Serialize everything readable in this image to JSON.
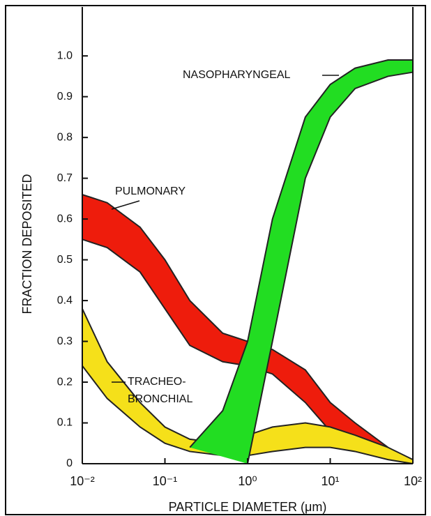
{
  "chart_data": {
    "type": "band",
    "y_label": "FRACTION DEPOSITED",
    "x_label": "PARTICLE DIAMETER (μm)",
    "x_scale": "log",
    "x": [
      0.01,
      0.02,
      0.05,
      0.1,
      0.2,
      0.5,
      1,
      2,
      5,
      10,
      20,
      50,
      100
    ],
    "xlim": [
      0.01,
      100
    ],
    "xticks": [
      {
        "value": 0.01,
        "label": "10⁻²"
      },
      {
        "value": 0.1,
        "label": "10⁻¹"
      },
      {
        "value": 1,
        "label": "10⁰"
      },
      {
        "value": 10,
        "label": "10¹"
      },
      {
        "value": 100,
        "label": "10²"
      }
    ],
    "ylim": [
      0,
      1.12
    ],
    "yticks": [
      0,
      0.1,
      0.2,
      0.3,
      0.4,
      0.5,
      0.6,
      0.7,
      0.8,
      0.9,
      {
        "value": 1,
        "label": "1.0"
      }
    ],
    "series": [
      {
        "label": [
          "PULMONARY"
        ],
        "color": "#ee1c0c",
        "upper": [
          0.66,
          0.64,
          0.58,
          0.5,
          0.4,
          0.32,
          0.3,
          0.28,
          0.23,
          0.15,
          0.1,
          0.04,
          null
        ],
        "lower": [
          0.55,
          0.53,
          0.47,
          0.38,
          0.29,
          0.25,
          0.24,
          0.22,
          0.15,
          0.08,
          0.04,
          0.03,
          null
        ]
      },
      {
        "label": [
          "TRACHEO-",
          "BRONCHIAL"
        ],
        "color": "#f5e01a",
        "upper": [
          0.38,
          0.25,
          0.15,
          0.09,
          0.06,
          0.05,
          0.07,
          0.09,
          0.1,
          0.09,
          0.07,
          0.04,
          0.01
        ],
        "lower": [
          0.24,
          0.16,
          0.09,
          0.05,
          0.03,
          0.02,
          0.02,
          0.03,
          0.04,
          0.04,
          0.03,
          0.01,
          0.0
        ]
      },
      {
        "label": [
          "NASOPHARYNGEAL"
        ],
        "color": "#22dd22",
        "upper": [
          null,
          null,
          null,
          null,
          0.04,
          0.13,
          0.3,
          0.6,
          0.85,
          0.93,
          0.97,
          0.99,
          0.99
        ],
        "lower": [
          null,
          null,
          null,
          null,
          null,
          null,
          0.0,
          0.3,
          0.7,
          0.85,
          0.92,
          0.95,
          0.96
        ]
      }
    ]
  }
}
